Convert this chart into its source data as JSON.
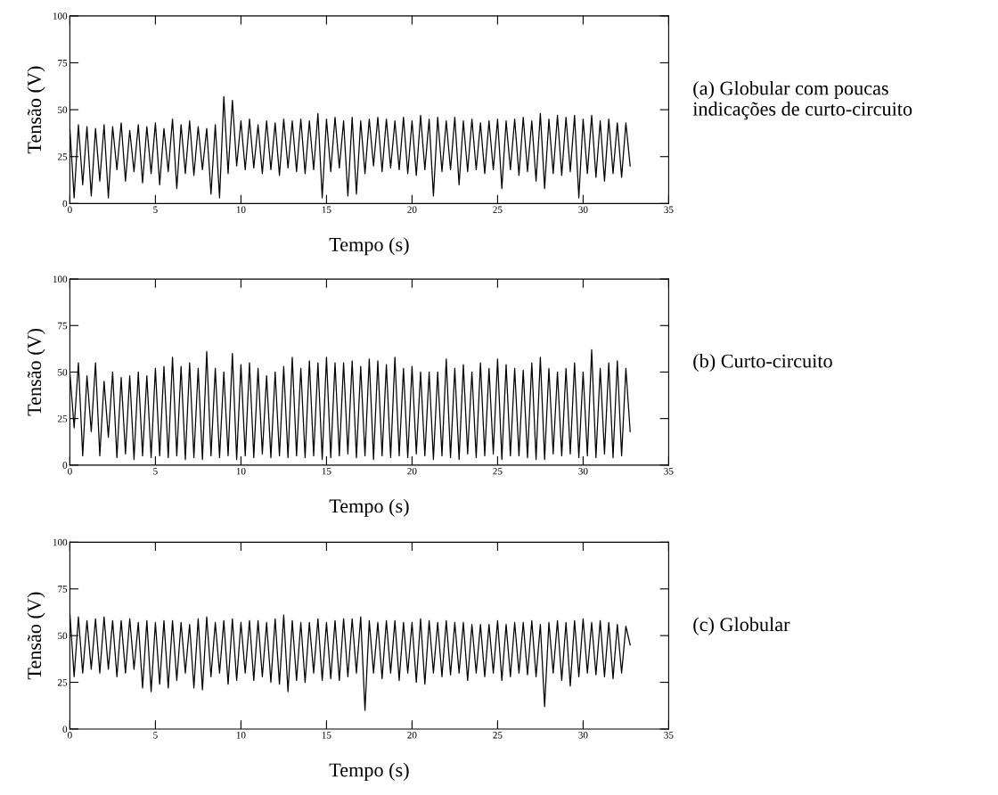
{
  "chart_data": [
    {
      "type": "line",
      "xlabel": "Tempo (s)",
      "ylabel": "Tensão (V)",
      "annotations": [
        "(a) Globular com poucas\nindicações de curto-circuito"
      ],
      "x": [
        0,
        0.25,
        0.5,
        0.75,
        1,
        1.25,
        1.5,
        1.75,
        2,
        2.25,
        2.5,
        2.75,
        3,
        3.25,
        3.5,
        3.75,
        4,
        4.25,
        4.5,
        4.75,
        5,
        5.25,
        5.5,
        5.75,
        6,
        6.25,
        6.5,
        6.75,
        7,
        7.25,
        7.5,
        7.75,
        8,
        8.25,
        8.5,
        8.75,
        9,
        9.25,
        9.5,
        9.75,
        10,
        10.25,
        10.5,
        10.75,
        11,
        11.25,
        11.5,
        11.75,
        12,
        12.25,
        12.5,
        12.75,
        13,
        13.25,
        13.5,
        13.75,
        14,
        14.25,
        14.5,
        14.75,
        15,
        15.25,
        15.5,
        15.75,
        16,
        16.25,
        16.5,
        16.75,
        17,
        17.25,
        17.5,
        17.75,
        18,
        18.25,
        18.5,
        18.75,
        19,
        19.25,
        19.5,
        19.75,
        20,
        20.25,
        20.5,
        20.75,
        21,
        21.25,
        21.5,
        21.75,
        22,
        22.25,
        22.5,
        22.75,
        23,
        23.25,
        23.5,
        23.75,
        24,
        24.25,
        24.5,
        24.75,
        25,
        25.25,
        25.5,
        25.75,
        26,
        26.25,
        26.5,
        26.75,
        27,
        27.25,
        27.5,
        27.75,
        28,
        28.25,
        28.5,
        28.75,
        29,
        29.25,
        29.5,
        29.75,
        30,
        30.25,
        30.5,
        30.75,
        31,
        31.25,
        31.5,
        31.75,
        32,
        32.25,
        32.5,
        32.75
      ],
      "series": [
        {
          "color": "#000000",
          "values": [
            40,
            3,
            42,
            10,
            41,
            4,
            40,
            12,
            42,
            3,
            41,
            18,
            43,
            12,
            39,
            17,
            42,
            11,
            41,
            16,
            43,
            10,
            40,
            17,
            45,
            8,
            42,
            16,
            44,
            15,
            41,
            18,
            40,
            5,
            42,
            3,
            57,
            16,
            55,
            20,
            44,
            18,
            45,
            19,
            42,
            16,
            44,
            18,
            43,
            15,
            45,
            19,
            44,
            17,
            45,
            16,
            44,
            18,
            48,
            3,
            45,
            17,
            46,
            19,
            44,
            4,
            46,
            5,
            44,
            16,
            45,
            20,
            46,
            17,
            45,
            19,
            44,
            18,
            46,
            16,
            44,
            15,
            47,
            18,
            45,
            4,
            46,
            17,
            44,
            18,
            46,
            10,
            44,
            17,
            45,
            18,
            43,
            16,
            44,
            18,
            45,
            8,
            44,
            18,
            45,
            15,
            46,
            17,
            44,
            12,
            48,
            8,
            45,
            16,
            47,
            15,
            46,
            17,
            47,
            3,
            45,
            16,
            47,
            14,
            44,
            12,
            45,
            16,
            43,
            14,
            43,
            20
          ]
        }
      ],
      "xlim": [
        0,
        35
      ],
      "xticks": [
        0,
        5,
        10,
        15,
        20,
        25,
        30,
        35
      ],
      "ylim": [
        0,
        100
      ],
      "yticks": [
        0,
        25,
        50,
        75,
        100
      ]
    },
    {
      "type": "line",
      "xlabel": "Tempo (s)",
      "ylabel": "Tensão (V)",
      "annotations": [
        "(b) Curto-circuito"
      ],
      "x": [
        0,
        0.25,
        0.5,
        0.75,
        1,
        1.25,
        1.5,
        1.75,
        2,
        2.25,
        2.5,
        2.75,
        3,
        3.25,
        3.5,
        3.75,
        4,
        4.25,
        4.5,
        4.75,
        5,
        5.25,
        5.5,
        5.75,
        6,
        6.25,
        6.5,
        6.75,
        7,
        7.25,
        7.5,
        7.75,
        8,
        8.25,
        8.5,
        8.75,
        9,
        9.25,
        9.5,
        9.75,
        10,
        10.25,
        10.5,
        10.75,
        11,
        11.25,
        11.5,
        11.75,
        12,
        12.25,
        12.5,
        12.75,
        13,
        13.25,
        13.5,
        13.75,
        14,
        14.25,
        14.5,
        14.75,
        15,
        15.25,
        15.5,
        15.75,
        16,
        16.25,
        16.5,
        16.75,
        17,
        17.25,
        17.5,
        17.75,
        18,
        18.25,
        18.5,
        18.75,
        19,
        19.25,
        19.5,
        19.75,
        20,
        20.25,
        20.5,
        20.75,
        21,
        21.25,
        21.5,
        21.75,
        22,
        22.25,
        22.5,
        22.75,
        23,
        23.25,
        23.5,
        23.75,
        24,
        24.25,
        24.5,
        24.75,
        25,
        25.25,
        25.5,
        25.75,
        26,
        26.25,
        26.5,
        26.75,
        27,
        27.25,
        27.5,
        27.75,
        28,
        28.25,
        28.5,
        28.75,
        29,
        29.25,
        29.5,
        29.75,
        30,
        30.25,
        30.5,
        30.75,
        31,
        31.25,
        31.5,
        31.75,
        32,
        32.25,
        32.5,
        32.75
      ],
      "series": [
        {
          "color": "#000000",
          "values": [
            50,
            20,
            55,
            5,
            48,
            18,
            55,
            5,
            45,
            15,
            50,
            4,
            47,
            6,
            48,
            3,
            50,
            5,
            48,
            4,
            52,
            5,
            53,
            4,
            58,
            5,
            53,
            3,
            55,
            4,
            52,
            3,
            61,
            5,
            52,
            4,
            50,
            5,
            60,
            3,
            54,
            5,
            55,
            4,
            52,
            6,
            48,
            4,
            50,
            5,
            53,
            4,
            58,
            5,
            52,
            4,
            56,
            5,
            55,
            3,
            58,
            4,
            55,
            5,
            55,
            6,
            56,
            4,
            53,
            5,
            57,
            3,
            56,
            5,
            54,
            4,
            58,
            5,
            52,
            4,
            53,
            6,
            50,
            5,
            50,
            3,
            50,
            5,
            57,
            4,
            52,
            3,
            54,
            6,
            50,
            4,
            55,
            5,
            52,
            6,
            57,
            3,
            54,
            5,
            52,
            5,
            51,
            4,
            55,
            3,
            58,
            3,
            52,
            6,
            50,
            5,
            52,
            6,
            55,
            4,
            50,
            5,
            62,
            4,
            52,
            6,
            55,
            4,
            56,
            5,
            52,
            18
          ]
        }
      ],
      "xlim": [
        0,
        35
      ],
      "xticks": [
        0,
        5,
        10,
        15,
        20,
        25,
        30,
        35
      ],
      "ylim": [
        0,
        100
      ],
      "yticks": [
        0,
        25,
        50,
        75,
        100
      ]
    },
    {
      "type": "line",
      "xlabel": "Tempo (s)",
      "ylabel": "Tensão (V)",
      "annotations": [
        "(c) Globular"
      ],
      "x": [
        0,
        0.25,
        0.5,
        0.75,
        1,
        1.25,
        1.5,
        1.75,
        2,
        2.25,
        2.5,
        2.75,
        3,
        3.25,
        3.5,
        3.75,
        4,
        4.25,
        4.5,
        4.75,
        5,
        5.25,
        5.5,
        5.75,
        6,
        6.25,
        6.5,
        6.75,
        7,
        7.25,
        7.5,
        7.75,
        8,
        8.25,
        8.5,
        8.75,
        9,
        9.25,
        9.5,
        9.75,
        10,
        10.25,
        10.5,
        10.75,
        11,
        11.25,
        11.5,
        11.75,
        12,
        12.25,
        12.5,
        12.75,
        13,
        13.25,
        13.5,
        13.75,
        14,
        14.25,
        14.5,
        14.75,
        15,
        15.25,
        15.5,
        15.75,
        16,
        16.25,
        16.5,
        16.75,
        17,
        17.25,
        17.5,
        17.75,
        18,
        18.25,
        18.5,
        18.75,
        19,
        19.25,
        19.5,
        19.75,
        20,
        20.25,
        20.5,
        20.75,
        21,
        21.25,
        21.5,
        21.75,
        22,
        22.25,
        22.5,
        22.75,
        23,
        23.25,
        23.5,
        23.75,
        24,
        24.25,
        24.5,
        24.75,
        25,
        25.25,
        25.5,
        25.75,
        26,
        26.25,
        26.5,
        26.75,
        27,
        27.25,
        27.5,
        27.75,
        28,
        28.25,
        28.5,
        28.75,
        29,
        29.25,
        29.5,
        29.75,
        30,
        30.25,
        30.5,
        30.75,
        31,
        31.25,
        31.5,
        31.75,
        32,
        32.25,
        32.5,
        32.75
      ],
      "series": [
        {
          "color": "#000000",
          "values": [
            62,
            28,
            60,
            30,
            58,
            32,
            59,
            30,
            60,
            32,
            58,
            28,
            58,
            30,
            59,
            32,
            57,
            22,
            58,
            20,
            57,
            24,
            58,
            22,
            58,
            26,
            57,
            30,
            56,
            22,
            59,
            21,
            60,
            28,
            57,
            30,
            58,
            24,
            59,
            26,
            57,
            30,
            58,
            26,
            58,
            28,
            57,
            25,
            59,
            24,
            61,
            20,
            58,
            26,
            57,
            25,
            57,
            30,
            59,
            26,
            57,
            27,
            58,
            26,
            59,
            28,
            59,
            30,
            60,
            10,
            58,
            30,
            57,
            27,
            58,
            30,
            58,
            26,
            57,
            30,
            57,
            25,
            59,
            24,
            58,
            30,
            57,
            28,
            58,
            29,
            57,
            30,
            57,
            26,
            56,
            30,
            56,
            28,
            56,
            30,
            58,
            26,
            56,
            28,
            57,
            30,
            57,
            29,
            58,
            28,
            56,
            12,
            57,
            30,
            58,
            26,
            57,
            23,
            58,
            28,
            59,
            30,
            57,
            29,
            58,
            28,
            57,
            27,
            56,
            30,
            55,
            45
          ]
        }
      ],
      "xlim": [
        0,
        35
      ],
      "xticks": [
        0,
        5,
        10,
        15,
        20,
        25,
        30,
        35
      ],
      "ylim": [
        0,
        100
      ],
      "yticks": [
        0,
        25,
        50,
        75,
        100
      ]
    }
  ]
}
